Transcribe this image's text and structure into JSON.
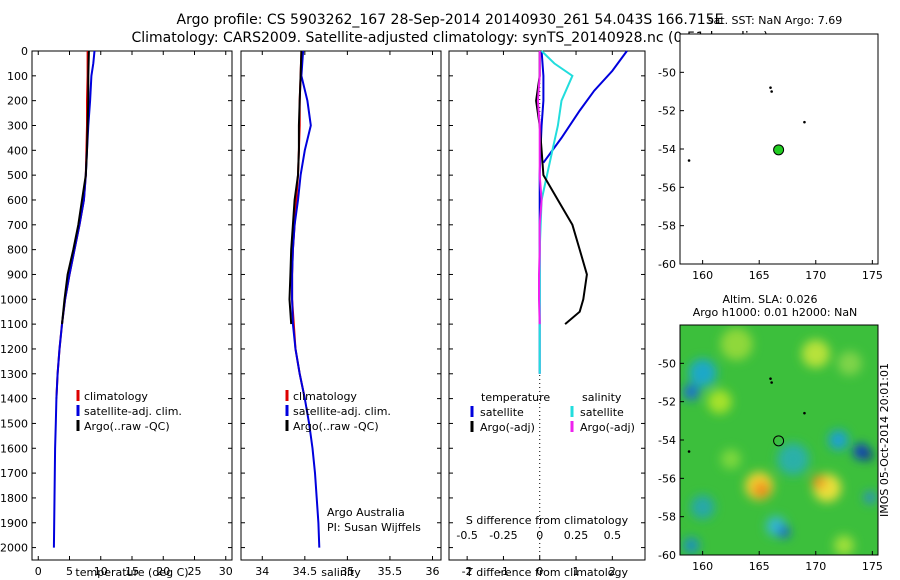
{
  "header": {
    "title_line1": "Argo profile: CS 5903262_167 28-Sep-2014 20140930_261 54.043S 166.715E",
    "title_line2": "Climatology: CARS2009. Satellite-adjusted climatology: synTS_20140928.nc (0.51d earlier)"
  },
  "colors": {
    "red": "#dd0000",
    "blue": "#0000dd",
    "black": "#000000",
    "cyan": "#22dddd",
    "magenta": "#ee22ee",
    "green": "#22cc22"
  },
  "chart_data": [
    {
      "id": "temperature",
      "type": "line",
      "xlabel": "temperature (deg C)",
      "xlim": [
        -1,
        31
      ],
      "ylim": [
        2050,
        0
      ],
      "xticks": [
        0,
        5,
        10,
        15,
        20,
        25,
        30
      ],
      "yticks": [
        0,
        100,
        200,
        300,
        400,
        500,
        600,
        700,
        800,
        900,
        1000,
        1100,
        1200,
        1300,
        1400,
        1500,
        1600,
        1700,
        1800,
        1900,
        2000
      ],
      "legend": [
        "climatology",
        "satellite-adj. clim.",
        "Argo(..raw -QC)"
      ],
      "series": [
        {
          "key": "climatology",
          "color": "red",
          "points": [
            [
              7.9,
              0
            ],
            [
              7.9,
              100
            ],
            [
              7.8,
              200
            ],
            [
              7.8,
              300
            ],
            [
              7.7,
              400
            ],
            [
              7.6,
              500
            ],
            [
              7.3,
              600
            ],
            [
              6.6,
              700
            ],
            [
              5.8,
              800
            ],
            [
              5.0,
              900
            ],
            [
              4.3,
              1000
            ],
            [
              3.8,
              1100
            ],
            [
              3.4,
              1200
            ],
            [
              3.1,
              1300
            ],
            [
              2.9,
              1400
            ]
          ]
        },
        {
          "key": "satellite-adj. clim.",
          "color": "blue",
          "points": [
            [
              9.0,
              0
            ],
            [
              8.8,
              50
            ],
            [
              8.5,
              100
            ],
            [
              8.3,
              200
            ],
            [
              8.0,
              300
            ],
            [
              7.8,
              400
            ],
            [
              7.6,
              500
            ],
            [
              7.3,
              600
            ],
            [
              6.6,
              700
            ],
            [
              5.8,
              800
            ],
            [
              5.0,
              900
            ],
            [
              4.3,
              1000
            ],
            [
              3.8,
              1100
            ],
            [
              3.4,
              1200
            ],
            [
              3.1,
              1300
            ],
            [
              2.9,
              1400
            ],
            [
              2.8,
              1500
            ],
            [
              2.7,
              1600
            ],
            [
              2.65,
              1700
            ],
            [
              2.6,
              1800
            ],
            [
              2.55,
              1900
            ],
            [
              2.5,
              2000
            ]
          ]
        },
        {
          "key": "Argo(..raw -QC)",
          "color": "black",
          "points": [
            [
              8.1,
              0
            ],
            [
              8.0,
              100
            ],
            [
              8.0,
              200
            ],
            [
              7.9,
              300
            ],
            [
              7.8,
              400
            ],
            [
              7.6,
              500
            ],
            [
              7.0,
              600
            ],
            [
              6.4,
              700
            ],
            [
              5.6,
              800
            ],
            [
              4.7,
              900
            ],
            [
              4.2,
              1000
            ],
            [
              3.8,
              1100
            ]
          ]
        }
      ]
    },
    {
      "id": "salinity",
      "type": "line",
      "xlabel": "salinity",
      "xlim": [
        33.75,
        36.1
      ],
      "ylim": [
        2050,
        0
      ],
      "xticks": [
        34,
        34.5,
        35,
        35.5,
        36
      ],
      "legend": [
        "climatology",
        "satellite-adj. clim.",
        "Argo(..raw -QC)"
      ],
      "annotation": [
        "Argo Australia",
        "PI: Susan Wijffels"
      ],
      "series": [
        {
          "key": "climatology",
          "color": "red",
          "points": [
            [
              34.46,
              0
            ],
            [
              34.45,
              100
            ],
            [
              34.44,
              200
            ],
            [
              34.44,
              300
            ],
            [
              34.43,
              400
            ],
            [
              34.42,
              500
            ],
            [
              34.4,
              600
            ],
            [
              34.38,
              700
            ],
            [
              34.36,
              800
            ],
            [
              34.35,
              900
            ],
            [
              34.35,
              1000
            ],
            [
              34.37,
              1100
            ],
            [
              34.39,
              1200
            ],
            [
              34.44,
              1300
            ],
            [
              34.5,
              1400
            ]
          ]
        },
        {
          "key": "satellite-adj. clim.",
          "color": "blue",
          "points": [
            [
              34.48,
              0
            ],
            [
              34.46,
              100
            ],
            [
              34.53,
              200
            ],
            [
              34.57,
              300
            ],
            [
              34.5,
              400
            ],
            [
              34.45,
              500
            ],
            [
              34.42,
              600
            ],
            [
              34.38,
              700
            ],
            [
              34.36,
              800
            ],
            [
              34.35,
              900
            ],
            [
              34.35,
              1000
            ],
            [
              34.36,
              1100
            ],
            [
              34.39,
              1200
            ],
            [
              34.44,
              1300
            ],
            [
              34.5,
              1400
            ],
            [
              34.55,
              1500
            ],
            [
              34.59,
              1600
            ],
            [
              34.62,
              1700
            ],
            [
              34.64,
              1800
            ],
            [
              34.66,
              1900
            ],
            [
              34.67,
              2000
            ]
          ]
        },
        {
          "key": "Argo(..raw -QC)",
          "color": "black",
          "points": [
            [
              34.46,
              0
            ],
            [
              34.45,
              100
            ],
            [
              34.44,
              200
            ],
            [
              34.43,
              300
            ],
            [
              34.43,
              400
            ],
            [
              34.42,
              500
            ],
            [
              34.38,
              600
            ],
            [
              34.36,
              700
            ],
            [
              34.34,
              800
            ],
            [
              34.33,
              900
            ],
            [
              34.32,
              1000
            ],
            [
              34.34,
              1100
            ]
          ]
        }
      ]
    },
    {
      "id": "differences",
      "type": "line",
      "xlabel": "T difference from climatology",
      "xlabel2": "S difference from climatology",
      "xlim": [
        -2.5,
        2.9
      ],
      "ylim": [
        2050,
        0
      ],
      "xticks": [
        -2,
        -1,
        0,
        1,
        2
      ],
      "xticks2": [
        -0.5,
        -0.25,
        0,
        0.25,
        0.5
      ],
      "xticks2_labels": [
        "-0.5",
        "-0.25",
        "0",
        "0.25",
        "0.5"
      ],
      "legend_headers": [
        "temperature",
        "salinity"
      ],
      "legend": [
        "satellite",
        "Argo(-adj)",
        "satellite",
        "Argo(-adj)"
      ],
      "series": [
        {
          "key": "T satellite",
          "color": "blue",
          "points": [
            [
              0.05,
              0
            ],
            [
              0.1,
              100
            ],
            [
              0.1,
              200
            ],
            [
              0.05,
              300
            ],
            [
              0.02,
              400
            ],
            [
              0,
              500
            ],
            [
              0,
              600
            ],
            [
              0,
              700
            ],
            [
              0,
              800
            ],
            [
              0,
              900
            ],
            [
              0,
              1000
            ],
            [
              0,
              1100
            ],
            [
              0,
              1200
            ],
            [
              0,
              1300
            ]
          ]
        },
        {
          "key": "T satellite surface",
          "color": "blue",
          "points": [
            [
              2.4,
              0
            ],
            [
              2.0,
              80
            ],
            [
              1.5,
              160
            ],
            [
              1.1,
              240
            ],
            [
              0.6,
              350
            ],
            [
              0.1,
              450
            ]
          ]
        },
        {
          "key": "S satellite",
          "color": "cyan",
          "points": [
            [
              0.05,
              0
            ],
            [
              0.4,
              50
            ],
            [
              0.9,
              100
            ],
            [
              0.6,
              200
            ],
            [
              0.5,
              300
            ],
            [
              0.35,
              400
            ],
            [
              0.2,
              500
            ],
            [
              0.05,
              600
            ],
            [
              0.0,
              800
            ],
            [
              0.0,
              1000
            ],
            [
              0.0,
              1200
            ],
            [
              0.0,
              1300
            ]
          ]
        },
        {
          "key": "T Argo(-adj)",
          "color": "black",
          "points": [
            [
              0,
              0
            ],
            [
              0,
              100
            ],
            [
              -0.1,
              200
            ],
            [
              0,
              300
            ],
            [
              0.05,
              400
            ],
            [
              0.1,
              500
            ],
            [
              0.5,
              600
            ],
            [
              0.9,
              700
            ],
            [
              1.1,
              800
            ],
            [
              1.3,
              900
            ],
            [
              1.2,
              1000
            ],
            [
              1.1,
              1050
            ],
            [
              0.7,
              1100
            ]
          ]
        },
        {
          "key": "S Argo(-adj)",
          "color": "magenta",
          "points": [
            [
              0,
              0
            ],
            [
              0,
              100
            ],
            [
              -0.05,
              200
            ],
            [
              0,
              300
            ],
            [
              0,
              400
            ],
            [
              0,
              500
            ],
            [
              0.05,
              600
            ],
            [
              0,
              700
            ],
            [
              0,
              800
            ],
            [
              -0.02,
              900
            ],
            [
              -0.02,
              1000
            ],
            [
              0,
              1100
            ]
          ]
        }
      ]
    },
    {
      "id": "sst-map",
      "type": "scatter",
      "title": "sat. SST: NaN Argo: 7.69",
      "xlim": [
        158,
        175.5
      ],
      "ylim": [
        -60,
        -48
      ],
      "xticks": [
        160,
        165,
        170,
        175
      ],
      "yticks": [
        -50,
        -52,
        -54,
        -56,
        -58,
        -60
      ],
      "float_position": [
        166.715,
        -54.043
      ],
      "previous_positions": [
        [
          166.0,
          -50.8
        ],
        [
          166.1,
          -51.0
        ],
        [
          169.0,
          -52.6
        ],
        [
          158.8,
          -54.6
        ]
      ]
    },
    {
      "id": "sla-map",
      "type": "heatmap",
      "title_line1": "Altim. SLA: 0.026",
      "title_line2": "Argo h1000: 0.01 h2000: NaN",
      "xlim": [
        158,
        175.5
      ],
      "ylim": [
        -60,
        -48
      ],
      "xticks": [
        160,
        165,
        170,
        175
      ],
      "yticks": [
        -50,
        -52,
        -54,
        -56,
        -58,
        -60
      ],
      "float_position": [
        166.715,
        -54.043
      ],
      "previous_positions": [
        [
          166.0,
          -50.8
        ],
        [
          166.1,
          -51.0
        ],
        [
          169.0,
          -52.6
        ],
        [
          158.8,
          -54.6
        ]
      ],
      "side_label": "IMOS 05-Oct-2014 20:01:01"
    }
  ]
}
